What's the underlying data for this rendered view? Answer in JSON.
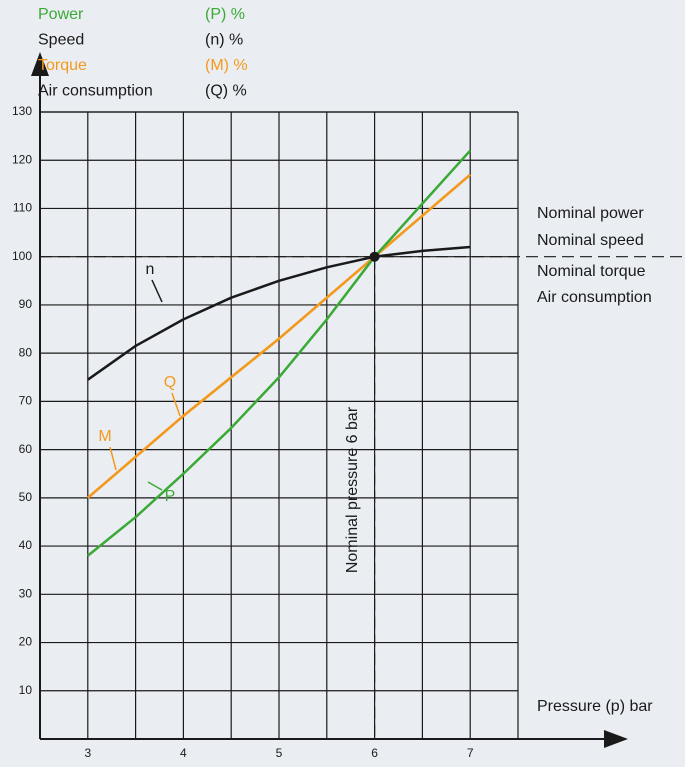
{
  "chart_data": {
    "type": "line",
    "x": [
      3,
      3.5,
      4,
      4.5,
      5,
      5.5,
      6,
      6.5,
      7
    ],
    "series": [
      {
        "name": "Power",
        "legend_label": "(P) %",
        "symbol": "P",
        "color": "#3aa935",
        "text_color": "#3aa935",
        "values": [
          38,
          46,
          55,
          64.5,
          75,
          87,
          100,
          111,
          122
        ]
      },
      {
        "name": "Speed",
        "legend_label": "(n) %",
        "symbol": "n",
        "color": "#1a1a1a",
        "text_color": "#1a1a1a",
        "values": [
          74.5,
          81.5,
          87,
          91.5,
          95,
          97.8,
          100,
          101.2,
          102
        ]
      },
      {
        "name": "Torque",
        "legend_label": "(M) %",
        "symbol": "M",
        "color": "#f39a1e",
        "text_color": "#f39a1e",
        "values": [
          50,
          58.5,
          67,
          75,
          83,
          91.5,
          100,
          108.5,
          117
        ]
      },
      {
        "name": "Air consumption",
        "legend_label": "(Q) %",
        "symbol": "Q",
        "color": "#f39a1e",
        "text_color": "#1a1a1a",
        "values": [
          50,
          58.5,
          67,
          75,
          83,
          91.5,
          100,
          108.5,
          117
        ]
      }
    ],
    "xlim": [
      2.5,
      7.5
    ],
    "xticks": [
      3,
      4,
      5,
      6,
      7
    ],
    "xgrid_minor": [
      3.5,
      4.5,
      5.5,
      6.5
    ],
    "ylim": [
      0,
      130
    ],
    "yticks": [
      10,
      20,
      30,
      40,
      50,
      60,
      70,
      80,
      90,
      100,
      110,
      120,
      130
    ],
    "grid": true,
    "xlabel": "Pressure (p) bar",
    "nominal": {
      "x": 6,
      "y": 100,
      "label": "Nominal pressure 6 bar",
      "right_labels": [
        "Nominal power",
        "Nominal speed",
        "Nominal torque",
        "Air consumption"
      ]
    }
  }
}
